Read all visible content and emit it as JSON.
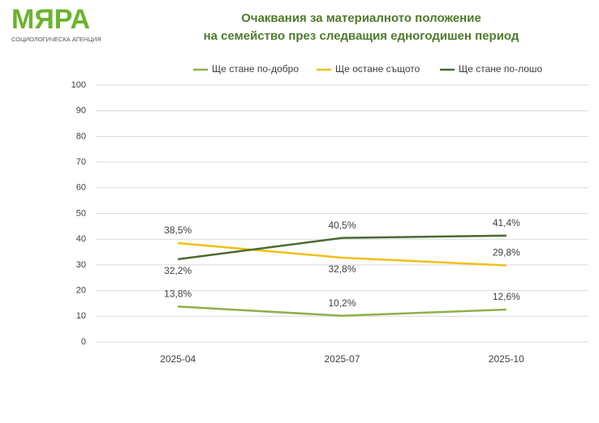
{
  "logo": {
    "name": "МЯРА",
    "tagline": "СОЦИОЛОГИЧЕСКА АГЕНЦИЯ"
  },
  "chart_data": {
    "type": "line",
    "title": [
      "Очаквания за материалното положение",
      "на семейство през следващия едногодишен период"
    ],
    "categories": [
      "2025-04",
      "2025-07",
      "2025-10"
    ],
    "series": [
      {
        "name": "Ще стане по-добро",
        "color": "#8db04a",
        "values": [
          13.8,
          10.2,
          12.6
        ],
        "value_labels": [
          "13,8%",
          "10,2%",
          "12,6%"
        ]
      },
      {
        "name": "Ще остане същото",
        "color": "#f2c014",
        "values": [
          38.5,
          32.8,
          29.8
        ],
        "value_labels": [
          "38,5%",
          "32,8%",
          "29,8%"
        ]
      },
      {
        "name": "Ще стане по-лошо",
        "color": "#4a6b2f",
        "values": [
          32.2,
          40.5,
          41.4
        ],
        "value_labels": [
          "32,2%",
          "40,5%",
          "41,4%"
        ]
      }
    ],
    "ylim": [
      0,
      100
    ],
    "yticks": [
      0,
      10,
      20,
      30,
      40,
      50,
      60,
      70,
      80,
      90,
      100
    ],
    "grid": true,
    "legend": "top"
  }
}
